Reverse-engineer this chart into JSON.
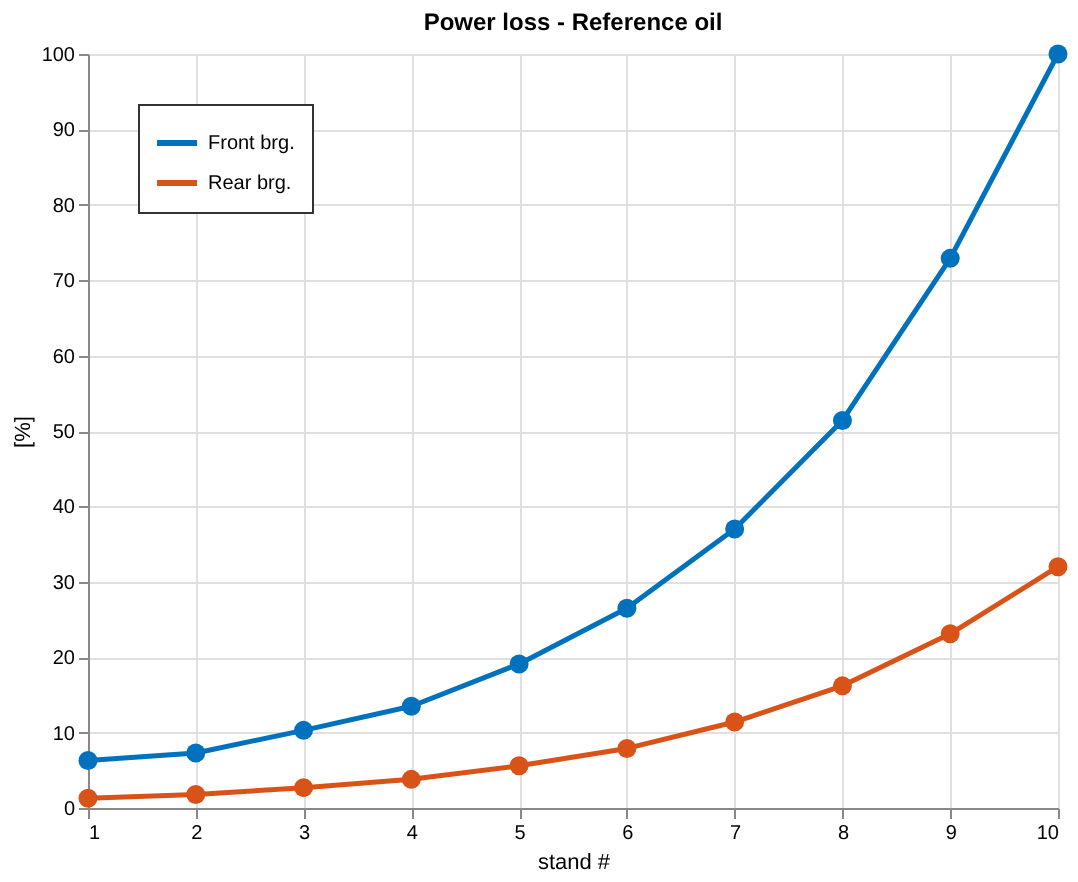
{
  "chart_data": {
    "type": "line",
    "title": "Power loss - Reference oil",
    "xlabel": "stand #",
    "ylabel": "[%]",
    "x": [
      1,
      2,
      3,
      4,
      5,
      6,
      7,
      8,
      9,
      10
    ],
    "series": [
      {
        "name": "Front brg.",
        "color": "#0072bd",
        "values": [
          6.3,
          7.3,
          10.3,
          13.5,
          19.1,
          26.5,
          37,
          51.4,
          72.9,
          100
        ]
      },
      {
        "name": "Rear brg.",
        "color": "#d95319",
        "values": [
          1.3,
          1.8,
          2.7,
          3.8,
          5.6,
          7.9,
          11.4,
          16.2,
          23.1,
          32
        ]
      }
    ],
    "xlim": [
      1,
      10
    ],
    "xticks": [
      1,
      2,
      3,
      4,
      5,
      6,
      7,
      8,
      9,
      10
    ],
    "ylim": [
      0,
      100
    ],
    "yticks": [
      0,
      10,
      20,
      30,
      40,
      50,
      60,
      70,
      80,
      90,
      100
    ],
    "grid": true,
    "legend": "top left",
    "marker": "circle",
    "line_style": "solid"
  }
}
